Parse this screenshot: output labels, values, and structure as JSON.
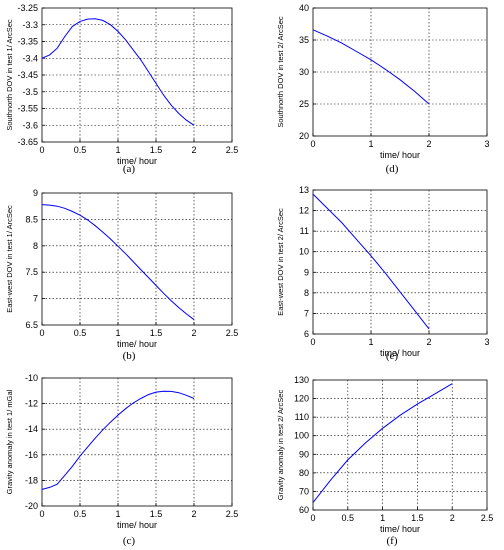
{
  "chart_data": [
    {
      "type": "line",
      "caption": "(a)",
      "xlabel": "time/ hour",
      "ylabel": "Southnorth DOV in test 1/ ArcSec",
      "xlim": [
        0,
        2.5
      ],
      "ylim": [
        -3.65,
        -3.25
      ],
      "xticks": [
        "0",
        "0.5",
        "1",
        "1.5",
        "2",
        "2.5"
      ],
      "yticks": [
        "-3.25",
        "-3.3",
        "-3.35",
        "-3.4",
        "-3.45",
        "-3.5",
        "-3.55",
        "-3.6",
        "-3.65"
      ],
      "grid": true,
      "series": [
        {
          "x": [
            0,
            0.1,
            0.2,
            0.3,
            0.4,
            0.5,
            0.6,
            0.7,
            0.8,
            0.9,
            1.0,
            1.1,
            1.2,
            1.3,
            1.4,
            1.5,
            1.6,
            1.7,
            1.8,
            1.9,
            2.0
          ],
          "values": [
            -3.4,
            -3.39,
            -3.37,
            -3.335,
            -3.305,
            -3.29,
            -3.283,
            -3.282,
            -3.287,
            -3.3,
            -3.32,
            -3.345,
            -3.375,
            -3.405,
            -3.44,
            -3.475,
            -3.51,
            -3.54,
            -3.565,
            -3.585,
            -3.6
          ]
        }
      ]
    },
    {
      "type": "line",
      "caption": "(d)",
      "xlabel": "time/ hour",
      "ylabel": "Southnorth DOV in test 2/ ArcSec",
      "xlim": [
        0,
        3
      ],
      "ylim": [
        20,
        40
      ],
      "xticks": [
        "0",
        "1",
        "2",
        "3"
      ],
      "yticks": [
        "40",
        "35",
        "30",
        "25",
        "20"
      ],
      "grid": true,
      "series": [
        {
          "x": [
            0,
            0.25,
            0.5,
            0.75,
            1.0,
            1.25,
            1.5,
            1.75,
            2.0
          ],
          "values": [
            36.6,
            35.6,
            34.5,
            33.2,
            31.9,
            30.4,
            28.8,
            27.0,
            25.0
          ]
        }
      ]
    },
    {
      "type": "line",
      "caption": "(b)",
      "xlabel": "time/ hour",
      "ylabel": "East-west DOV in test 1/ ArcSec",
      "xlim": [
        0,
        2.5
      ],
      "ylim": [
        6.5,
        9
      ],
      "xticks": [
        "0",
        "0.5",
        "1",
        "1.5",
        "2",
        "2.5"
      ],
      "yticks": [
        "9",
        "8.5",
        "8",
        "7.5",
        "7",
        "6.5"
      ],
      "grid": true,
      "series": [
        {
          "x": [
            0,
            0.1,
            0.2,
            0.3,
            0.4,
            0.5,
            0.6,
            0.7,
            0.8,
            0.9,
            1.0,
            1.1,
            1.2,
            1.3,
            1.4,
            1.5,
            1.6,
            1.7,
            1.8,
            1.9,
            2.0
          ],
          "values": [
            8.78,
            8.77,
            8.75,
            8.71,
            8.65,
            8.58,
            8.49,
            8.38,
            8.26,
            8.13,
            7.99,
            7.85,
            7.7,
            7.55,
            7.4,
            7.25,
            7.1,
            6.96,
            6.83,
            6.71,
            6.6
          ]
        }
      ]
    },
    {
      "type": "line",
      "caption": "(e)",
      "xlabel": "time/ hour",
      "ylabel": "East-west DOV in test 2/ ArcSec",
      "xlim": [
        0,
        3
      ],
      "ylim": [
        6,
        13
      ],
      "xticks": [
        "0",
        "1",
        "2",
        "3"
      ],
      "yticks": [
        "13",
        "12",
        "11",
        "10",
        "9",
        "8",
        "7",
        "6"
      ],
      "grid": true,
      "series": [
        {
          "x": [
            0,
            0.25,
            0.5,
            0.75,
            1.0,
            1.25,
            1.5,
            1.75,
            2.0
          ],
          "values": [
            12.8,
            12.1,
            11.4,
            10.6,
            9.8,
            8.95,
            8.05,
            7.15,
            6.25
          ]
        }
      ]
    },
    {
      "type": "line",
      "caption": "(c)",
      "xlabel": "time/ hour",
      "ylabel": "Gravity anomaly in test 1/ mGal",
      "xlim": [
        0,
        2.5
      ],
      "ylim": [
        -20,
        -10
      ],
      "xticks": [
        "0",
        "0.5",
        "1",
        "1.5",
        "2",
        "2.5"
      ],
      "yticks": [
        "-10",
        "-12",
        "-14",
        "-16",
        "-18",
        "-20"
      ],
      "grid": true,
      "series": [
        {
          "x": [
            0,
            0.1,
            0.2,
            0.3,
            0.4,
            0.5,
            0.6,
            0.7,
            0.8,
            0.9,
            1.0,
            1.1,
            1.2,
            1.3,
            1.4,
            1.5,
            1.6,
            1.7,
            1.8,
            1.9,
            2.0
          ],
          "values": [
            -18.7,
            -18.55,
            -18.3,
            -17.6,
            -16.9,
            -16.1,
            -15.4,
            -14.7,
            -14.05,
            -13.45,
            -12.9,
            -12.4,
            -11.95,
            -11.6,
            -11.3,
            -11.1,
            -11.03,
            -11.05,
            -11.15,
            -11.35,
            -11.6
          ]
        }
      ]
    },
    {
      "type": "line",
      "caption": "(f)",
      "xlabel": "time/ hour",
      "ylabel": "Gravity anomaly in test 2/ ArcSec",
      "xlim": [
        0,
        2.5
      ],
      "ylim": [
        60,
        130
      ],
      "xticks": [
        "0",
        "0.5",
        "1",
        "1.5",
        "2",
        "2.5"
      ],
      "yticks": [
        "130",
        "120",
        "110",
        "100",
        "90",
        "80",
        "70",
        "60"
      ],
      "grid": true,
      "series": [
        {
          "x": [
            0,
            0.25,
            0.5,
            0.75,
            1.0,
            1.25,
            1.5,
            1.75,
            2.0
          ],
          "values": [
            64,
            76,
            87,
            96,
            104,
            111,
            117,
            122.5,
            128
          ]
        }
      ]
    }
  ]
}
